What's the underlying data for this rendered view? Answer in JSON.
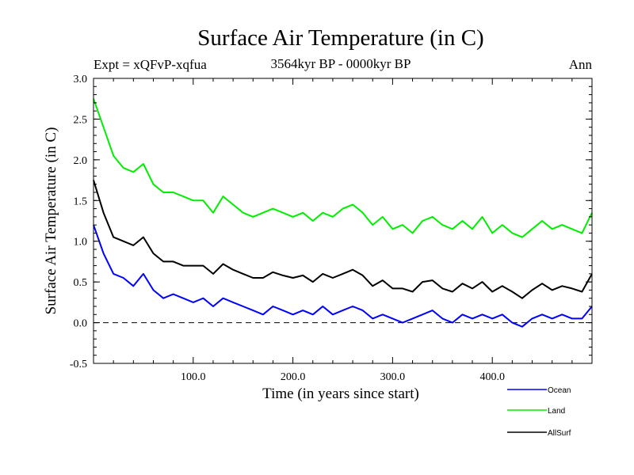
{
  "chart_data": {
    "type": "line",
    "title": "Surface Air Temperature (in C)",
    "subtitle": "3564kyr BP - 0000kyr BP",
    "experiment_label": "Expt = xQFvP-xqfua",
    "season_label": "Ann",
    "xlabel": "Time (in years since start)",
    "ylabel": "Surface Air Temperature (in C)",
    "xlim": [
      0,
      500
    ],
    "ylim": [
      -0.5,
      3.0
    ],
    "x_ticks": [
      100,
      200,
      300,
      400
    ],
    "x_tick_labels": [
      "100.0",
      "200.0",
      "300.0",
      "400.0"
    ],
    "y_ticks": [
      -0.5,
      0.0,
      0.5,
      1.0,
      1.5,
      2.0,
      2.5,
      3.0
    ],
    "y_tick_labels": [
      "-0.5",
      "0.0",
      "0.5",
      "1.0",
      "1.5",
      "2.0",
      "2.5",
      "3.0"
    ],
    "reference_line": 0.0,
    "x": [
      0,
      10,
      20,
      30,
      40,
      50,
      60,
      70,
      80,
      90,
      100,
      110,
      120,
      130,
      140,
      150,
      160,
      170,
      180,
      190,
      200,
      210,
      220,
      230,
      240,
      250,
      260,
      270,
      280,
      290,
      300,
      310,
      320,
      330,
      340,
      350,
      360,
      370,
      380,
      390,
      400,
      410,
      420,
      430,
      440,
      450,
      460,
      470,
      480,
      490,
      500
    ],
    "series": [
      {
        "name": "Ocean",
        "color": "#0000ff",
        "values": [
          1.2,
          0.85,
          0.6,
          0.55,
          0.45,
          0.6,
          0.4,
          0.3,
          0.35,
          0.3,
          0.25,
          0.3,
          0.2,
          0.3,
          0.25,
          0.2,
          0.15,
          0.1,
          0.2,
          0.15,
          0.1,
          0.15,
          0.1,
          0.2,
          0.1,
          0.15,
          0.2,
          0.15,
          0.05,
          0.1,
          0.05,
          0.0,
          0.05,
          0.1,
          0.15,
          0.05,
          0.0,
          0.1,
          0.05,
          0.1,
          0.05,
          0.1,
          0.0,
          -0.05,
          0.05,
          0.1,
          0.05,
          0.1,
          0.05,
          0.05,
          0.2
        ]
      },
      {
        "name": "Land",
        "color": "#00ee00",
        "values": [
          2.75,
          2.4,
          2.05,
          1.9,
          1.85,
          1.95,
          1.7,
          1.6,
          1.6,
          1.55,
          1.5,
          1.5,
          1.35,
          1.55,
          1.45,
          1.35,
          1.3,
          1.35,
          1.4,
          1.35,
          1.3,
          1.35,
          1.25,
          1.35,
          1.3,
          1.4,
          1.45,
          1.35,
          1.2,
          1.3,
          1.15,
          1.2,
          1.1,
          1.25,
          1.3,
          1.2,
          1.15,
          1.25,
          1.15,
          1.3,
          1.1,
          1.2,
          1.1,
          1.05,
          1.15,
          1.25,
          1.15,
          1.2,
          1.15,
          1.1,
          1.35
        ]
      },
      {
        "name": "AllSurf",
        "color": "#000000",
        "values": [
          1.75,
          1.35,
          1.05,
          1.0,
          0.95,
          1.05,
          0.85,
          0.75,
          0.75,
          0.7,
          0.7,
          0.7,
          0.6,
          0.72,
          0.65,
          0.6,
          0.55,
          0.55,
          0.62,
          0.58,
          0.55,
          0.58,
          0.5,
          0.6,
          0.55,
          0.6,
          0.65,
          0.58,
          0.45,
          0.52,
          0.42,
          0.42,
          0.38,
          0.5,
          0.52,
          0.42,
          0.38,
          0.48,
          0.42,
          0.5,
          0.38,
          0.45,
          0.38,
          0.3,
          0.4,
          0.48,
          0.4,
          0.45,
          0.42,
          0.38,
          0.6
        ]
      }
    ]
  }
}
